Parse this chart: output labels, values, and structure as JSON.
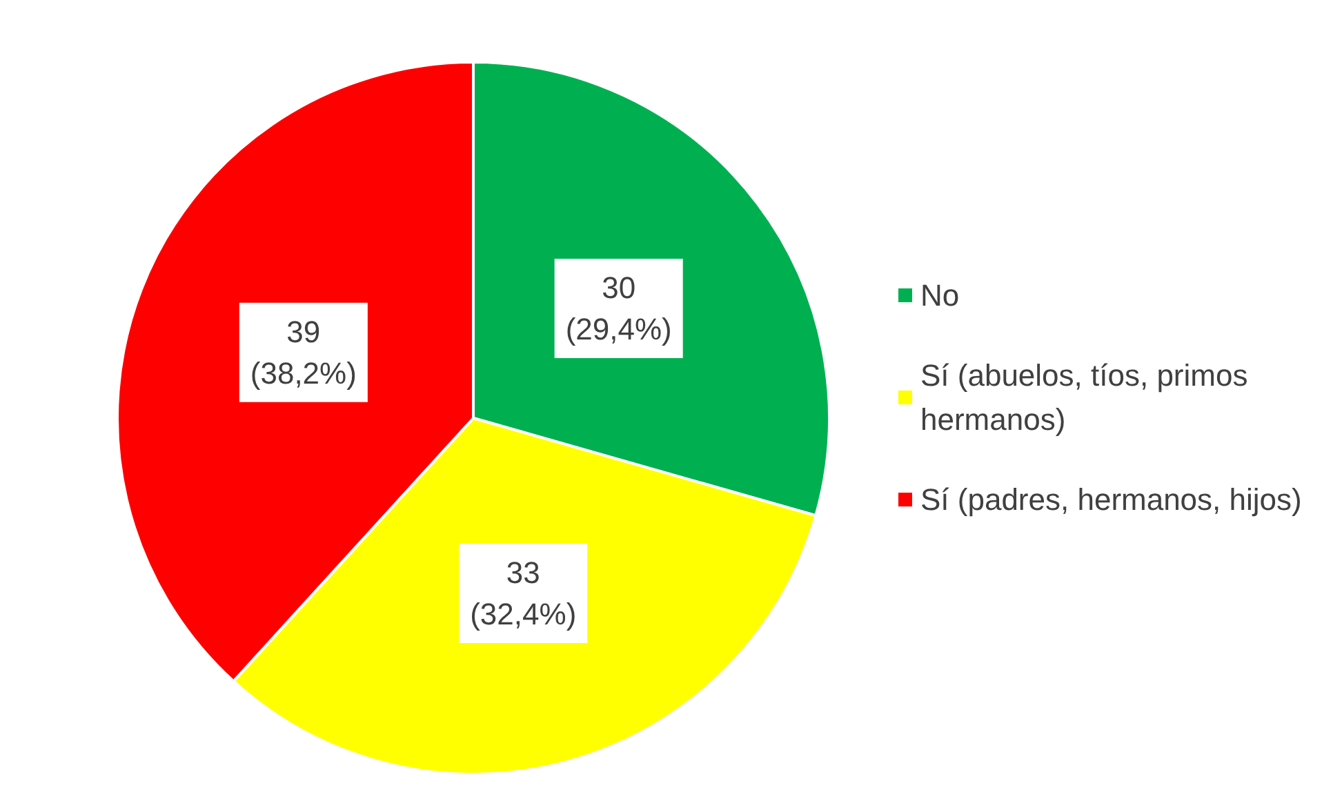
{
  "chart_data": {
    "type": "pie",
    "categories": [
      "No",
      "Sí (abuelos, tíos, primos hermanos)",
      "Sí (padres, hermanos, hijos)"
    ],
    "values": [
      30,
      33,
      39
    ],
    "colors": [
      "#00b050",
      "#ffff00",
      "#ff0000"
    ],
    "value_labels": [
      "30\n(29,4%)",
      "33\n(32,4%)",
      "39\n(38,2%)"
    ],
    "legend": "right"
  }
}
